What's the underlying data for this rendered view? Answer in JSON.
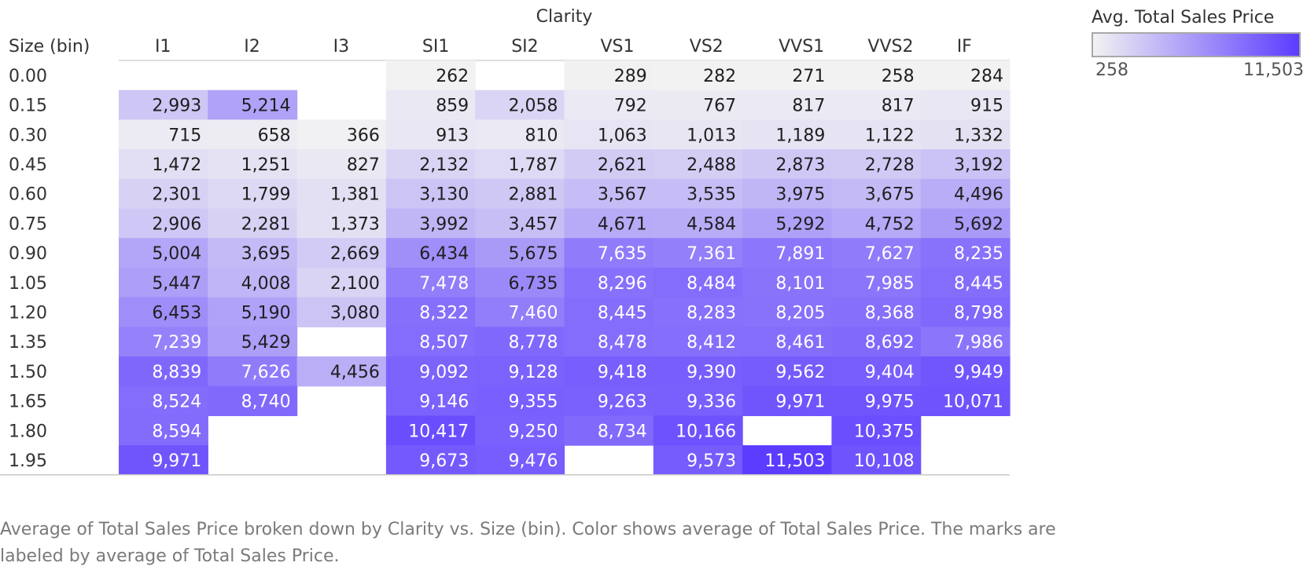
{
  "chart_data": {
    "type": "heatmap",
    "column_group_label": "Clarity",
    "row_header": "Size (bin)",
    "columns": [
      "I1",
      "I2",
      "I3",
      "SI1",
      "SI2",
      "VS1",
      "VS2",
      "VVS1",
      "VVS2",
      "IF"
    ],
    "rows": [
      "0.00",
      "0.15",
      "0.30",
      "0.45",
      "0.60",
      "0.75",
      "0.90",
      "1.05",
      "1.20",
      "1.35",
      "1.50",
      "1.65",
      "1.80",
      "1.95"
    ],
    "values": [
      [
        null,
        null,
        null,
        262,
        null,
        289,
        282,
        271,
        258,
        284
      ],
      [
        2993,
        5214,
        null,
        859,
        2058,
        792,
        767,
        817,
        817,
        915
      ],
      [
        715,
        658,
        366,
        913,
        810,
        1063,
        1013,
        1189,
        1122,
        1332
      ],
      [
        1472,
        1251,
        827,
        2132,
        1787,
        2621,
        2488,
        2873,
        2728,
        3192
      ],
      [
        2301,
        1799,
        1381,
        3130,
        2881,
        3567,
        3535,
        3975,
        3675,
        4496
      ],
      [
        2906,
        2281,
        1373,
        3992,
        3457,
        4671,
        4584,
        5292,
        4752,
        5692
      ],
      [
        5004,
        3695,
        2669,
        6434,
        5675,
        7635,
        7361,
        7891,
        7627,
        8235
      ],
      [
        5447,
        4008,
        2100,
        7478,
        6735,
        8296,
        8484,
        8101,
        7985,
        8445
      ],
      [
        6453,
        5190,
        3080,
        8322,
        7460,
        8445,
        8283,
        8205,
        8368,
        8798
      ],
      [
        7239,
        5429,
        null,
        8507,
        8778,
        8478,
        8412,
        8461,
        8692,
        7986
      ],
      [
        8839,
        7626,
        4456,
        9092,
        9128,
        9418,
        9390,
        9562,
        9404,
        9949
      ],
      [
        8524,
        8740,
        null,
        9146,
        9355,
        9263,
        9336,
        9971,
        9975,
        10071
      ],
      [
        8594,
        null,
        null,
        10417,
        9250,
        8734,
        10166,
        null,
        10375,
        null
      ],
      [
        9971,
        null,
        null,
        9673,
        9476,
        null,
        9573,
        11503,
        10108,
        null
      ]
    ],
    "color_min": 258,
    "color_max": 11503,
    "color_low": "#f2f2f2",
    "color_high": "#5c3cff"
  },
  "legend": {
    "title": "Avg. Total Sales Price",
    "min_label": "258",
    "max_label": "11,503"
  },
  "caption": "Average of Total Sales Price broken down by Clarity vs. Size (bin).  Color shows average of Total Sales Price.  The marks are labeled by average of Total Sales Price."
}
